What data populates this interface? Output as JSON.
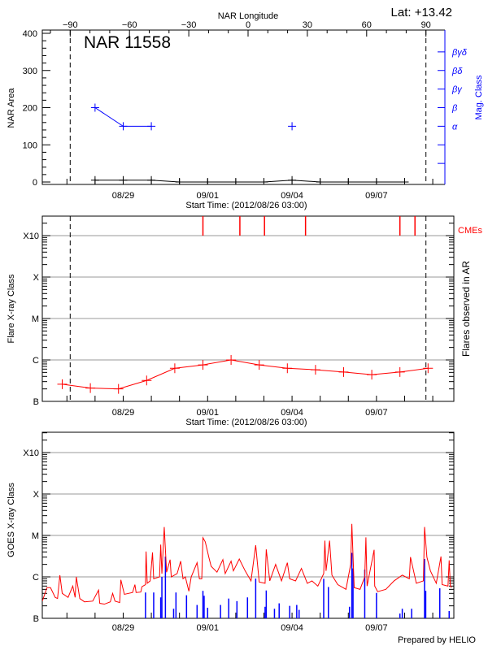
{
  "chart_data": [
    {
      "type": "line",
      "title": "NAR 11558",
      "lat_label": "Lat: +13.42",
      "top_axis_label": "NAR Longitude",
      "top_axis_ticks": [
        -90,
        -60,
        -30,
        0,
        30,
        60,
        90
      ],
      "longitude_markers": [
        -90,
        90
      ],
      "xlabel": "Start Time: (2012/08/26 03:00)",
      "x_tick_labels": [
        "08/29",
        "09/01",
        "09/04",
        "09/07"
      ],
      "ylabel": "NAR Area",
      "yticks": [
        0,
        100,
        200,
        300,
        400
      ],
      "ylim": [
        0,
        400
      ],
      "y2label": "Mag. Class",
      "y2_ticks": [
        {
          "value": 50,
          "label": ""
        },
        {
          "value": 100,
          "label": ""
        },
        {
          "value": 150,
          "label": "α"
        },
        {
          "value": 200,
          "label": "β"
        },
        {
          "value": 250,
          "label": "βγ"
        },
        {
          "value": 300,
          "label": "βδ"
        },
        {
          "value": 350,
          "label": "βγδ"
        }
      ],
      "area_series": [
        {
          "t": "08/28 00:00",
          "v": 5
        },
        {
          "t": "08/29 00:00",
          "v": 5
        },
        {
          "t": "08/30 00:00",
          "v": 5
        },
        {
          "t": "08/31 00:00",
          "v": 0
        },
        {
          "t": "09/01 00:00",
          "v": 0
        },
        {
          "t": "09/02 00:00",
          "v": 0
        },
        {
          "t": "09/03 00:00",
          "v": 0
        },
        {
          "t": "09/04 00:00",
          "v": 5
        },
        {
          "t": "09/05 00:00",
          "v": 0
        },
        {
          "t": "09/06 00:00",
          "v": 0
        },
        {
          "t": "09/07 00:00",
          "v": 0
        },
        {
          "t": "09/08 00:00",
          "v": 0
        }
      ],
      "mag_series": [
        {
          "t": "08/28 00:00",
          "class": "β"
        },
        {
          "t": "08/29 00:00",
          "class": "α"
        },
        {
          "t": "08/30 00:00",
          "class": "α"
        },
        {
          "t": "09/04 00:00",
          "class": "α"
        }
      ],
      "colors": {
        "area": "#000000",
        "mag_class": "#0000ff"
      }
    },
    {
      "type": "line",
      "yscale": "log",
      "xlabel": "Start Time: (2012/08/26 03:00)",
      "x_tick_labels": [
        "08/29",
        "09/01",
        "09/04",
        "09/07"
      ],
      "ylabel": "Flare X-ray Class",
      "y2label": "Flares observed in AR",
      "y_classes": [
        {
          "label": "B",
          "flux": 1e-07
        },
        {
          "label": "C",
          "flux": 1e-06
        },
        {
          "label": "M",
          "flux": 1e-05
        },
        {
          "label": "X",
          "flux": 0.0001
        },
        {
          "label": "X10",
          "flux": 0.001
        }
      ],
      "grid": true,
      "longitude_markers": [
        -90,
        90
      ],
      "flare_series": [
        {
          "t": "08/26 20:00",
          "flux": 2.6e-07
        },
        {
          "t": "08/27 20:00",
          "flux": 2.1e-07
        },
        {
          "t": "08/28 20:00",
          "flux": 2e-07
        },
        {
          "t": "08/29 20:00",
          "flux": 3.2e-07
        },
        {
          "t": "08/30 20:00",
          "flux": 6.3e-07
        },
        {
          "t": "08/31 20:00",
          "flux": 7.6e-07
        },
        {
          "t": "09/01 20:00",
          "flux": 1e-06
        },
        {
          "t": "09/02 20:00",
          "flux": 7.6e-07
        },
        {
          "t": "09/03 20:00",
          "flux": 6.3e-07
        },
        {
          "t": "09/04 20:00",
          "flux": 5.8e-07
        },
        {
          "t": "09/05 20:00",
          "flux": 5.1e-07
        },
        {
          "t": "09/06 20:00",
          "flux": 4.4e-07
        },
        {
          "t": "09/07 20:00",
          "flux": 5.1e-07
        },
        {
          "t": "09/08 20:00",
          "flux": 6.3e-07
        }
      ],
      "cme_label": "CMEs",
      "cme_times": [
        "08/31 20:00",
        "09/02 03:30",
        "09/03 00:30",
        "09/04 11:30",
        "09/07 20:00",
        "09/08 08:50"
      ],
      "colors": {
        "flares": "#ff0000",
        "cme": "#ff0000",
        "grid": "#999999"
      }
    },
    {
      "type": "line",
      "yscale": "log",
      "x_tick_labels": [
        "08/29",
        "09/01",
        "09/04",
        "09/07"
      ],
      "ylabel": "GOES X-ray Class",
      "y_classes": [
        {
          "label": "B",
          "flux": 1e-07
        },
        {
          "label": "C",
          "flux": 1e-06
        },
        {
          "label": "M",
          "flux": 1e-05
        },
        {
          "label": "X",
          "flux": 0.0001
        },
        {
          "label": "X10",
          "flux": 0.001
        }
      ],
      "grid": true,
      "goes_series": [
        [
          "08/26 03:00",
          2.6e-07
        ],
        [
          "08/26 07:00",
          5.5e-07
        ],
        [
          "08/26 10:00",
          5.5e-07
        ],
        [
          "08/26 14:00",
          3.2e-07
        ],
        [
          "08/26 16:00",
          3e-07
        ],
        [
          "08/26 18:00",
          1.1e-06
        ],
        [
          "08/26 20:00",
          4e-07
        ],
        [
          "08/27 01:00",
          3.2e-07
        ],
        [
          "08/27 05:00",
          6e-07
        ],
        [
          "08/27 07:00",
          3.2e-07
        ],
        [
          "08/27 08:00",
          1e-06
        ],
        [
          "08/27 11:00",
          3e-07
        ],
        [
          "08/27 15:00",
          2.5e-07
        ],
        [
          "08/27 22:00",
          2.6e-07
        ],
        [
          "08/28 03:00",
          4.8e-07
        ],
        [
          "08/28 04:00",
          2.3e-07
        ],
        [
          "08/28 08:00",
          2.2e-07
        ],
        [
          "08/28 13:00",
          2.5e-07
        ],
        [
          "08/28 15:00",
          4e-07
        ],
        [
          "08/28 17:00",
          2.6e-07
        ],
        [
          "08/28 21:00",
          2.4e-07
        ],
        [
          "08/28 22:00",
          8.5e-07
        ],
        [
          "08/29 01:00",
          3.8e-07
        ],
        [
          "08/29 08:00",
          4.2e-07
        ],
        [
          "08/29 10:00",
          6.5e-07
        ],
        [
          "08/29 11:00",
          4.2e-07
        ],
        [
          "08/29 15:00",
          4.3e-07
        ],
        [
          "08/29 16:00",
          5.8e-07
        ],
        [
          "08/29 19:00",
          6.5e-07
        ],
        [
          "08/29 19:30",
          4.1e-06
        ],
        [
          "08/29 20:30",
          7e-07
        ],
        [
          "08/29 23:00",
          8e-07
        ],
        [
          "08/30 01:00",
          3.9e-06
        ],
        [
          "08/30 02:00",
          9e-07
        ],
        [
          "08/30 07:00",
          1e-06
        ],
        [
          "08/30 08:00",
          6e-06
        ],
        [
          "08/30 09:00",
          1.2e-06
        ],
        [
          "08/30 11:00",
          1.6e-05
        ],
        [
          "08/30 13:00",
          1.3e-06
        ],
        [
          "08/30 16:00",
          2.6e-06
        ],
        [
          "08/30 17:00",
          1e-06
        ],
        [
          "08/30 22:00",
          1.2e-06
        ],
        [
          "08/31 01:00",
          2.4e-06
        ],
        [
          "08/31 03:00",
          9e-07
        ],
        [
          "08/31 05:00",
          1e-06
        ],
        [
          "08/31 08:00",
          4.5e-07
        ],
        [
          "08/31 10:00",
          1e-06
        ],
        [
          "08/31 15:00",
          2.2e-06
        ],
        [
          "08/31 17:00",
          9e-07
        ],
        [
          "08/31 19:00",
          9e-07
        ],
        [
          "08/31 20:00",
          8.8e-06
        ],
        [
          "08/31 22:00",
          7e-06
        ],
        [
          "09/01 01:00",
          3e-06
        ],
        [
          "09/01 03:00",
          1.8e-06
        ],
        [
          "09/01 08:00",
          1.3e-06
        ],
        [
          "09/01 13:00",
          2.6e-06
        ],
        [
          "09/01 15:00",
          1.2e-06
        ],
        [
          "09/01 20:00",
          2.4e-06
        ],
        [
          "09/01 22:00",
          1.4e-06
        ],
        [
          "09/02 03:00",
          2.7e-06
        ],
        [
          "09/02 08:00",
          1.4e-06
        ],
        [
          "09/02 13:00",
          8e-07
        ],
        [
          "09/02 17:00",
          5.8e-06
        ],
        [
          "09/02 20:00",
          7.5e-07
        ],
        [
          "09/03 01:00",
          7e-07
        ],
        [
          "09/03 02:00",
          4.6e-06
        ],
        [
          "09/03 05:00",
          8e-07
        ],
        [
          "09/03 10:00",
          2e-06
        ],
        [
          "09/03 15:00",
          8e-07
        ],
        [
          "09/03 20:00",
          2.2e-06
        ],
        [
          "09/03 22:00",
          9e-07
        ],
        [
          "09/04 03:00",
          8e-07
        ],
        [
          "09/04 08:00",
          1.6e-06
        ],
        [
          "09/04 13:00",
          7e-07
        ],
        [
          "09/04 17:00",
          8e-07
        ],
        [
          "09/04 22:00",
          6e-07
        ],
        [
          "09/05 03:00",
          1.2e-06
        ],
        [
          "09/05 04:00",
          7.5e-06
        ],
        [
          "09/05 05:00",
          1.4e-06
        ],
        [
          "09/05 08:00",
          7.5e-06
        ],
        [
          "09/05 10:00",
          1.1e-06
        ],
        [
          "09/05 15:00",
          6.5e-07
        ],
        [
          "09/05 22:00",
          5e-07
        ],
        [
          "09/06 02:00",
          2e-06
        ],
        [
          "09/06 03:00",
          1.9e-05
        ],
        [
          "09/06 05:00",
          5.5e-07
        ],
        [
          "09/06 10:00",
          5e-07
        ],
        [
          "09/06 14:00",
          1e-06
        ],
        [
          "09/06 15:00",
          9e-06
        ],
        [
          "09/06 16:00",
          6e-07
        ],
        [
          "09/06 22:00",
          4.5e-06
        ],
        [
          "09/06 22:30",
          6e-07
        ],
        [
          "09/07 01:00",
          4.4e-07
        ],
        [
          "09/07 08:00",
          5e-07
        ],
        [
          "09/07 15:00",
          8e-07
        ],
        [
          "09/07 22:00",
          1.1e-06
        ],
        [
          "09/08 04:00",
          9e-07
        ],
        [
          "09/08 05:00",
          3e-06
        ],
        [
          "09/08 10:00",
          7e-07
        ],
        [
          "09/08 16:00",
          8e-07
        ],
        [
          "09/08 17:00",
          1.6e-05
        ],
        [
          "09/08 19:00",
          3e-06
        ],
        [
          "09/08 22:00",
          1.4e-06
        ],
        [
          "09/09 03:00",
          7e-07
        ],
        [
          "09/09 07:00",
          3.1e-06
        ],
        [
          "09/09 08:00",
          6.5e-07
        ],
        [
          "09/09 13:00",
          6e-07
        ],
        [
          "09/09 14:00",
          2.5e-06
        ],
        [
          "09/09 15:00",
          6e-07
        ],
        [
          "09/09 16:00",
          5.5e-07
        ]
      ],
      "flare_bars": [
        [
          "08/29 19:00",
          4.2e-07
        ],
        [
          "08/30 02:00",
          4.2e-07
        ],
        [
          "08/30 08:00",
          3.2e-07
        ],
        [
          "08/30 09:00",
          1e-06
        ],
        [
          "08/30 12:00",
          3.1e-06
        ],
        [
          "08/30 19:00",
          1.7e-07
        ],
        [
          "08/30 21:00",
          4.2e-07
        ],
        [
          "08/31 06:00",
          3.6e-07
        ],
        [
          "08/31 15:00",
          2.1e-07
        ],
        [
          "08/31 20:00",
          4.6e-07
        ],
        [
          "08/31 21:00",
          3.5e-07
        ],
        [
          "09/01 00:00",
          1.8e-07
        ],
        [
          "09/01 11:00",
          2.1e-07
        ],
        [
          "09/01 18:00",
          3e-07
        ],
        [
          "09/02 01:00",
          2.6e-07
        ],
        [
          "09/02 10:00",
          3.2e-07
        ],
        [
          "09/02 17:00",
          9.1e-07
        ],
        [
          "09/03 01:00",
          1.9e-07
        ],
        [
          "09/03 02:00",
          4.7e-07
        ],
        [
          "09/03 09:00",
          1.7e-07
        ],
        [
          "09/03 13:00",
          2.3e-07
        ],
        [
          "09/03 22:00",
          2e-07
        ],
        [
          "09/04 04:00",
          2.1e-07
        ],
        [
          "09/04 06:00",
          1.6e-07
        ],
        [
          "09/05 03:00",
          9e-07
        ],
        [
          "09/05 07:00",
          5.7e-07
        ],
        [
          "09/06 01:00",
          1.9e-07
        ],
        [
          "09/06 03:00",
          3.8e-06
        ],
        [
          "09/06 04:00",
          1.6e-06
        ],
        [
          "09/06 14:00",
          1.5e-06
        ],
        [
          "09/07 00:00",
          4.1e-07
        ],
        [
          "09/07 20:00",
          1.3e-07
        ],
        [
          "09/07 22:00",
          1.7e-07
        ],
        [
          "09/08 06:00",
          1.7e-07
        ],
        [
          "09/08 17:00",
          2.7e-06
        ],
        [
          "09/08 18:00",
          4.6e-07
        ],
        [
          "09/09 06:00",
          5.3e-07
        ],
        [
          "09/09 14:00",
          1.5e-07
        ]
      ],
      "colors": {
        "goes": "#ff0000",
        "flare_bars": "#0000ff",
        "grid": "#999999"
      }
    }
  ],
  "footer": {
    "credit": "Prepared by HELIO"
  }
}
